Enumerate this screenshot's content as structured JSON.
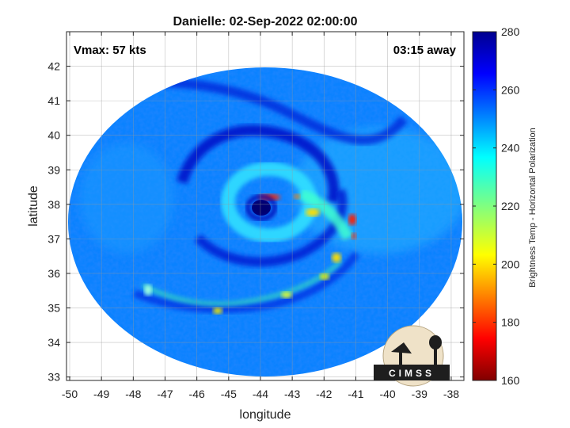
{
  "chart_data": {
    "type": "heatmap",
    "title": "Danielle: 02-Sep-2022 02:00:00",
    "xlabel": "longitude",
    "ylabel": "latitude",
    "xlim": [
      -50.1,
      -37.6
    ],
    "ylim": [
      32.9,
      43.0
    ],
    "xticks": [
      -50,
      -49,
      -48,
      -47,
      -46,
      -45,
      -44,
      -43,
      -42,
      -41,
      -40,
      -39,
      -38
    ],
    "yticks": [
      33,
      34,
      35,
      36,
      37,
      38,
      39,
      40,
      41,
      42
    ],
    "grid": true,
    "annotations": {
      "vmax": "Vmax: 57 kts",
      "offset": "03:15 away"
    },
    "center": {
      "lon": -44.05,
      "lat": 37.9
    },
    "colorbar": {
      "label": "Brightness Temp - Horizontal Polarization",
      "range": [
        160,
        280
      ],
      "ticks": [
        160,
        180,
        200,
        220,
        240,
        260,
        280
      ],
      "colormap": "jet"
    },
    "background_value": 248,
    "bands": [
      {
        "description": "eye",
        "value": 272
      },
      {
        "description": "inner eyewall",
        "value": 232
      },
      {
        "description": "east eyewall peaks",
        "value": 168
      },
      {
        "description": "rain bands",
        "value": 262
      },
      {
        "description": "southern convection",
        "value": 215
      }
    ]
  },
  "logo": {
    "text": "CIMSS"
  }
}
